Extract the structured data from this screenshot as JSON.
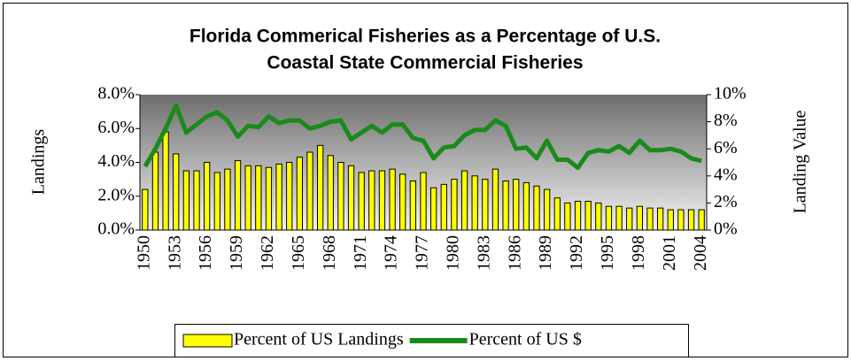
{
  "chart_data": {
    "type": "combo",
    "title": [
      "Florida Commerical Fisheries as a Percentage of U.S.",
      "Coastal State Commercial Fisheries"
    ],
    "ylabel": "Landings",
    "y2label": "Landing Value",
    "categories": [
      "1950",
      null,
      null,
      "1953",
      null,
      null,
      "1956",
      null,
      null,
      "1959",
      null,
      null,
      "1962",
      null,
      null,
      "1965",
      null,
      null,
      "1968",
      null,
      null,
      "1971",
      null,
      null,
      "1974",
      null,
      null,
      "1977",
      null,
      null,
      "1980",
      null,
      null,
      "1983",
      null,
      null,
      "1986",
      null,
      null,
      "1989",
      null,
      null,
      "1992",
      null,
      null,
      "1995",
      null,
      null,
      "1998",
      null,
      null,
      "2001",
      null,
      null,
      "2004"
    ],
    "series": [
      {
        "name": "Percent of US Landings",
        "type": "bar",
        "axis": "y",
        "color": "#ffff00",
        "values": [
          2.4,
          4.6,
          5.8,
          4.5,
          3.5,
          3.5,
          4.0,
          3.4,
          3.6,
          4.1,
          3.8,
          3.8,
          3.7,
          3.9,
          4.0,
          4.3,
          4.6,
          5.0,
          4.4,
          4.0,
          3.8,
          3.4,
          3.5,
          3.5,
          3.6,
          3.3,
          2.9,
          3.4,
          2.5,
          2.7,
          3.0,
          3.5,
          3.2,
          3.0,
          3.6,
          2.9,
          3.0,
          2.8,
          2.6,
          2.4,
          1.9,
          1.6,
          1.7,
          1.7,
          1.6,
          1.4,
          1.4,
          1.3,
          1.4,
          1.3,
          1.3,
          1.2,
          1.2,
          1.2,
          1.2
        ]
      },
      {
        "name": "Percent of US $",
        "type": "line",
        "axis": "y2",
        "color": "#1b8a1b",
        "values": [
          4.7,
          6.0,
          7.5,
          9.2,
          7.2,
          7.8,
          8.4,
          8.7,
          8.1,
          6.9,
          7.7,
          7.6,
          8.4,
          7.9,
          8.1,
          8.1,
          7.5,
          7.7,
          8.0,
          8.1,
          6.7,
          7.2,
          7.7,
          7.2,
          7.8,
          7.8,
          6.8,
          6.6,
          5.3,
          6.1,
          6.2,
          7.0,
          7.4,
          7.4,
          8.1,
          7.7,
          6.0,
          6.1,
          5.3,
          6.6,
          5.2,
          5.2,
          4.6,
          5.7,
          5.9,
          5.8,
          6.2,
          5.7,
          6.6,
          5.9,
          5.9,
          6.0,
          5.8,
          5.3,
          5.1
        ]
      }
    ],
    "ylim": [
      0,
      8
    ],
    "yticks": [
      {
        "value": 0,
        "label": "0.0%"
      },
      {
        "value": 2,
        "label": "2.0%"
      },
      {
        "value": 4,
        "label": "4.0%"
      },
      {
        "value": 6,
        "label": "6.0%"
      },
      {
        "value": 8,
        "label": "8.0%"
      }
    ],
    "y2lim": [
      0,
      10
    ],
    "y2ticks": [
      {
        "value": 0,
        "label": "0%"
      },
      {
        "value": 2,
        "label": "2%"
      },
      {
        "value": 4,
        "label": "4%"
      },
      {
        "value": 6,
        "label": "6%"
      },
      {
        "value": 8,
        "label": "8%"
      },
      {
        "value": 10,
        "label": "10%"
      }
    ],
    "legend": "bottom"
  }
}
